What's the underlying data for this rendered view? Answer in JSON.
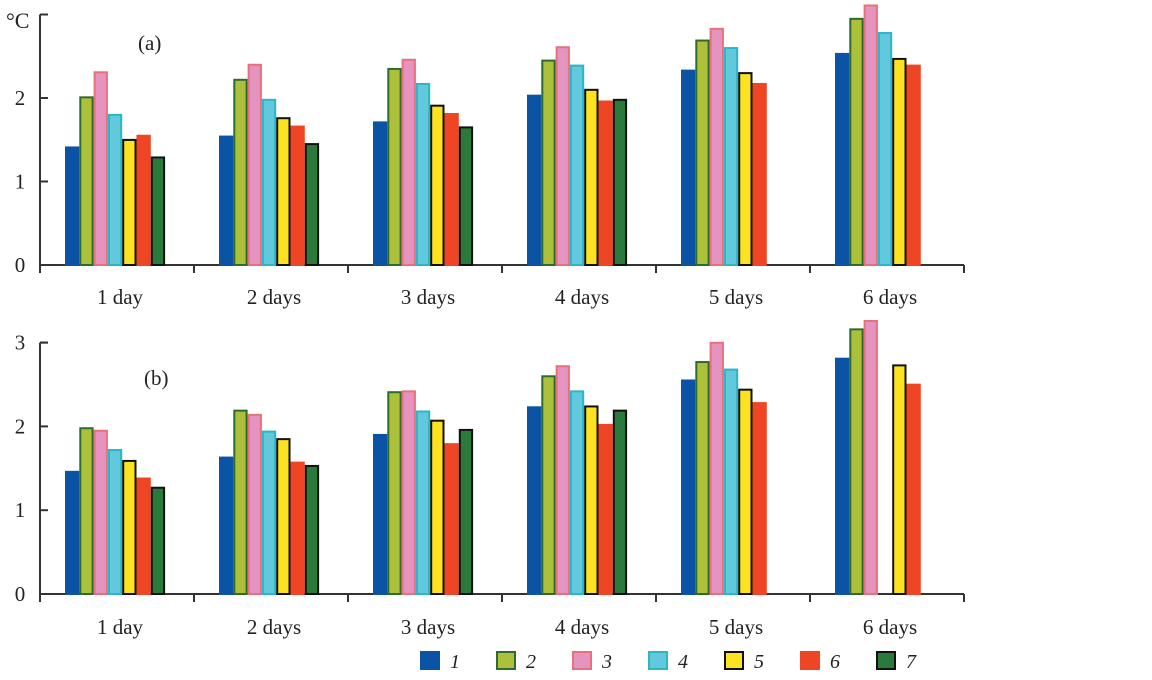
{
  "chart_data": {
    "type": "bar",
    "unit_label": "°C",
    "categories": [
      "1 day",
      "2 days",
      "3 days",
      "4 days",
      "5 days",
      "6 days"
    ],
    "legend": [
      "1",
      "2",
      "3",
      "4",
      "5",
      "6",
      "7"
    ],
    "legend_position": "bottom-right",
    "colors": [
      "#0b53a5",
      "#adc03a",
      "#e593bf",
      "#62c8dc",
      "#fce221",
      "#ee4524",
      "#2a7a3c"
    ],
    "borders": [
      "#0b53a5",
      "#2e6b30",
      "#e8707a",
      "#2bb5c8",
      "#111111",
      "#ee4524",
      "#111111"
    ],
    "panels": [
      {
        "label": "(a)",
        "ylim": [
          0,
          3
        ],
        "yticks": [
          "0",
          "1",
          "2"
        ],
        "series": [
          {
            "name": "1",
            "values": [
              1.42,
              1.55,
              1.72,
              2.04,
              2.34,
              2.54
            ]
          },
          {
            "name": "2",
            "values": [
              2.02,
              2.23,
              2.36,
              2.46,
              2.7,
              2.96
            ]
          },
          {
            "name": "3",
            "values": [
              2.32,
              2.41,
              2.47,
              2.62,
              2.84,
              3.12
            ]
          },
          {
            "name": "4",
            "values": [
              1.81,
              1.99,
              2.18,
              2.4,
              2.61,
              2.79
            ]
          },
          {
            "name": "5",
            "values": [
              1.51,
              1.77,
              1.92,
              2.11,
              2.31,
              2.48
            ]
          },
          {
            "name": "6",
            "values": [
              1.56,
              1.67,
              1.82,
              1.97,
              2.18,
              2.4
            ]
          },
          {
            "name": "7",
            "values": [
              1.3,
              1.46,
              1.66,
              1.99,
              null,
              null
            ]
          }
        ]
      },
      {
        "label": "(b)",
        "ylim": [
          0,
          3
        ],
        "yticks": [
          "0",
          "1",
          "2",
          "3"
        ],
        "series": [
          {
            "name": "1",
            "values": [
              1.47,
              1.64,
              1.91,
              2.24,
              2.56,
              2.82
            ]
          },
          {
            "name": "2",
            "values": [
              1.99,
              2.2,
              2.42,
              2.61,
              2.78,
              3.17
            ]
          },
          {
            "name": "3",
            "values": [
              1.96,
              2.15,
              2.43,
              2.73,
              3.01,
              3.27
            ]
          },
          {
            "name": "4",
            "values": [
              1.73,
              1.95,
              2.19,
              2.43,
              2.69,
              null
            ]
          },
          {
            "name": "5",
            "values": [
              1.6,
              1.86,
              2.08,
              2.25,
              2.45,
              2.74
            ]
          },
          {
            "name": "6",
            "values": [
              1.39,
              1.58,
              1.8,
              2.03,
              2.29,
              2.51
            ]
          },
          {
            "name": "7",
            "values": [
              1.28,
              1.54,
              1.97,
              2.2,
              null,
              null
            ]
          }
        ]
      }
    ]
  }
}
